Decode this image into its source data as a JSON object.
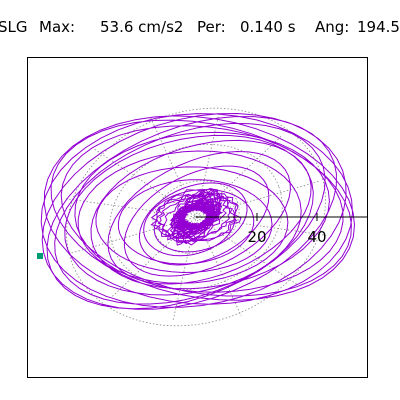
{
  "header": {
    "station": "SLG",
    "max_label": "Max:",
    "max_value": "53.6 cm/s2",
    "per_label": "Per:",
    "per_value": "0.140 s",
    "ang_label": "Ang:",
    "ang_value": "194.5"
  },
  "plot": {
    "tick_labels": [
      "20",
      "40"
    ],
    "trace_color": "#9400d3",
    "grid_color": "#888888",
    "axis_color": "#000000",
    "marker_color": "#009b77"
  }
}
